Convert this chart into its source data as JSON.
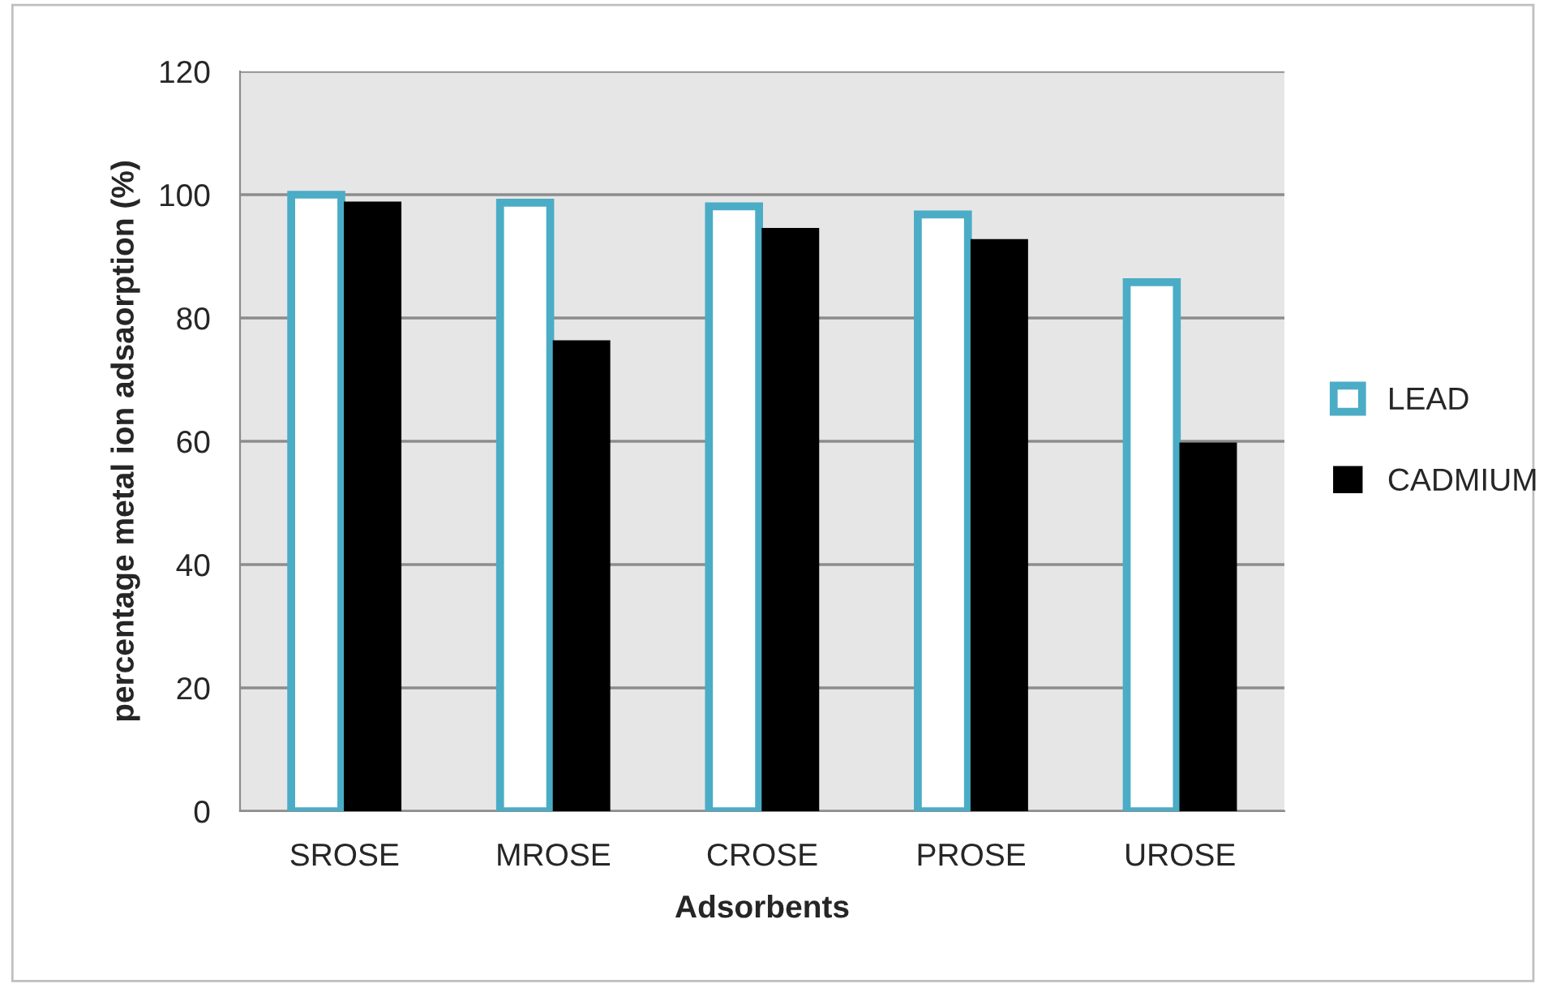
{
  "chart_data": {
    "type": "bar",
    "xlabel": "Adsorbents",
    "ylabel": "percentage metal ion adsaorption (%)",
    "categories": [
      "SROSE",
      "MROSE",
      "CROSE",
      "PROSE",
      "UROSE"
    ],
    "series": [
      {
        "name": "LEAD",
        "color": "#4bacc6",
        "values": [
          100,
          98.7,
          98.1,
          96.8,
          85.8
        ]
      },
      {
        "name": "CADMIUM",
        "color": "#000000",
        "values": [
          98.8,
          76.3,
          94.5,
          92.7,
          59.7
        ]
      }
    ],
    "ylim": [
      0,
      120
    ],
    "yticks": [
      0,
      20,
      40,
      60,
      80,
      100,
      120
    ],
    "grid": "y",
    "legend": "right"
  }
}
